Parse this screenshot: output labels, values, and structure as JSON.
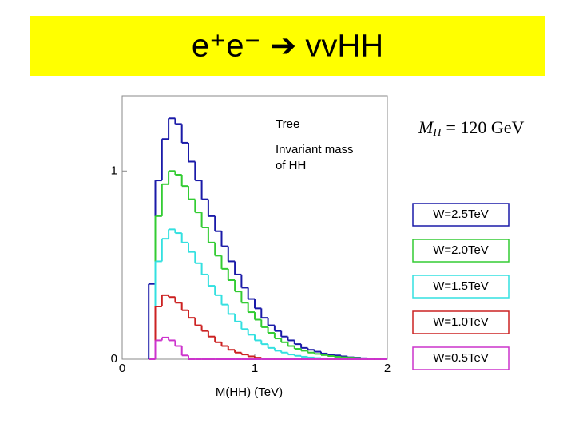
{
  "chart_data": {
    "type": "histogram",
    "title": "e⁺e⁻ ➔ vvHH",
    "xlabel": "M(HH) (TeV)",
    "annotations": [
      "Tree",
      "Invariant mass",
      "of HH"
    ],
    "mass_note": {
      "symbol": "M",
      "subscript": "H",
      "text": "= 120 GeV"
    },
    "bins": [
      0.2,
      0.25,
      0.3,
      0.35,
      0.4,
      0.45,
      0.5,
      0.55,
      0.6,
      0.65,
      0.7,
      0.75,
      0.8,
      0.85,
      0.9,
      0.95,
      1.0,
      1.05,
      1.1,
      1.15,
      1.2,
      1.25,
      1.3,
      1.35,
      1.4,
      1.45,
      1.5,
      1.55,
      1.6,
      1.65,
      1.7,
      1.75,
      1.8,
      1.85,
      1.9,
      1.95,
      2.0
    ],
    "series": [
      {
        "name": "W=2.5TeV",
        "color": "#1a1aa8",
        "values": [
          0.4,
          0.95,
          1.17,
          1.28,
          1.25,
          1.15,
          1.05,
          0.95,
          0.85,
          0.76,
          0.68,
          0.6,
          0.52,
          0.45,
          0.38,
          0.32,
          0.27,
          0.22,
          0.18,
          0.15,
          0.12,
          0.1,
          0.08,
          0.06,
          0.05,
          0.04,
          0.03,
          0.025,
          0.02,
          0.015,
          0.01,
          0.008,
          0.005,
          0.004,
          0.003,
          0.002
        ]
      },
      {
        "name": "W=2.0TeV",
        "color": "#33cc33",
        "values": [
          0,
          0.76,
          0.93,
          1.0,
          0.98,
          0.92,
          0.85,
          0.78,
          0.7,
          0.62,
          0.55,
          0.48,
          0.42,
          0.36,
          0.3,
          0.25,
          0.21,
          0.17,
          0.14,
          0.11,
          0.09,
          0.07,
          0.055,
          0.045,
          0.035,
          0.028,
          0.022,
          0.017,
          0.013,
          0.01,
          0.008,
          0.006,
          0.004,
          0.003,
          0.002,
          0.001
        ]
      },
      {
        "name": "W=1.5TeV",
        "color": "#33e0e0",
        "values": [
          0,
          0.52,
          0.64,
          0.69,
          0.67,
          0.62,
          0.57,
          0.51,
          0.45,
          0.39,
          0.34,
          0.29,
          0.24,
          0.2,
          0.16,
          0.13,
          0.1,
          0.08,
          0.06,
          0.045,
          0.035,
          0.025,
          0.018,
          0.013,
          0.009,
          0.006,
          0.004,
          0.003,
          0.002,
          0.001,
          0.001,
          0,
          0,
          0,
          0,
          0
        ]
      },
      {
        "name": "W=1.0TeV",
        "color": "#cc2222",
        "values": [
          0,
          0.28,
          0.34,
          0.33,
          0.3,
          0.26,
          0.22,
          0.18,
          0.15,
          0.12,
          0.09,
          0.07,
          0.05,
          0.035,
          0.025,
          0.015,
          0.008,
          0.004,
          0,
          0,
          0,
          0,
          0,
          0,
          0,
          0,
          0,
          0,
          0,
          0,
          0,
          0,
          0,
          0,
          0,
          0
        ]
      },
      {
        "name": "W=0.5TeV",
        "color": "#cc33cc",
        "values": [
          0,
          0.1,
          0.115,
          0.1,
          0.07,
          0.02,
          0,
          0,
          0,
          0,
          0,
          0,
          0,
          0,
          0,
          0,
          0,
          0,
          0,
          0,
          0,
          0,
          0,
          0,
          0,
          0,
          0,
          0,
          0,
          0,
          0,
          0,
          0,
          0,
          0,
          0
        ]
      }
    ],
    "xlim": [
      0,
      2
    ],
    "xticks": [
      0,
      1,
      2
    ],
    "ylim": [
      0,
      1.4
    ],
    "yticks": [
      0,
      1
    ]
  }
}
